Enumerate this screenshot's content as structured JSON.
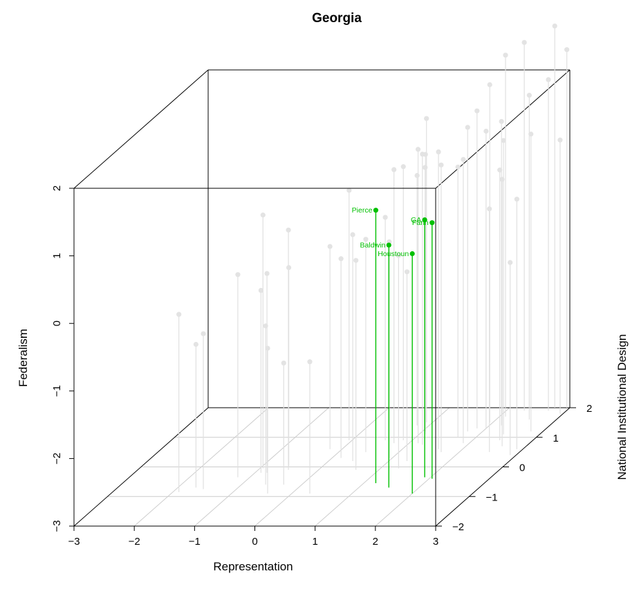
{
  "chart_data": {
    "type": "scatter3d",
    "title": "Georgia",
    "xlabel": "Representation",
    "ylabel": "Federalism",
    "zlabel": "National Institutional Design",
    "xlim": [
      -3,
      3
    ],
    "ylim": [
      -3,
      2
    ],
    "zlim": [
      -2,
      2
    ],
    "x_ticks": [
      "−3",
      "−2",
      "−1",
      "0",
      "1",
      "2",
      "3"
    ],
    "y_ticks": [
      "−3",
      "−2",
      "−1",
      "0",
      "1",
      "2"
    ],
    "z_ticks": [
      "−2",
      "−1",
      "0",
      "1",
      "2"
    ],
    "grid": true,
    "colors": {
      "highlight": "#00c000",
      "background_points": "#e3e3e3",
      "stem_background": "#e0e0e0",
      "grid": "#cccccc",
      "box": "#000000"
    },
    "highlighted_points": [
      {
        "label": "Pierce",
        "x": 1.2,
        "y": 1.04,
        "z": -0.55
      },
      {
        "label": "Baldwin",
        "x": 1.5,
        "y": 0.59,
        "z": -0.7
      },
      {
        "label": "GA",
        "x": 1.9,
        "y": 0.81,
        "z": -0.35
      },
      {
        "label": "Fann",
        "x": 2.05,
        "y": 0.79,
        "z": -0.4
      },
      {
        "label": "Houstoun",
        "x": 2.0,
        "y": 0.55,
        "z": -0.9
      }
    ],
    "other_points": [
      {
        "x": -1.9,
        "y": -0.37,
        "z": -0.85
      },
      {
        "x": -1.7,
        "y": -0.88,
        "z": -0.7
      },
      {
        "x": -1.55,
        "y": -0.7,
        "z": -0.75
      },
      {
        "x": -1.2,
        "y": 0.0,
        "z": -0.35
      },
      {
        "x": -0.95,
        "y": 0.75,
        "z": -0.05
      },
      {
        "x": -0.9,
        "y": -0.3,
        "z": -0.2
      },
      {
        "x": -0.8,
        "y": -0.05,
        "z": -0.2
      },
      {
        "x": -0.6,
        "y": -0.65,
        "z": -0.6
      },
      {
        "x": -0.55,
        "y": -0.05,
        "z": 0.0
      },
      {
        "x": -0.5,
        "y": 0.55,
        "z": -0.1
      },
      {
        "x": -0.4,
        "y": -0.85,
        "z": -0.9
      },
      {
        "x": -0.3,
        "y": -1.2,
        "z": -0.6
      },
      {
        "x": -0.2,
        "y": 0.0,
        "z": 0.6
      },
      {
        "x": -0.05,
        "y": 0.7,
        "z": 0.9
      },
      {
        "x": 0.15,
        "y": -0.05,
        "z": 0.3
      },
      {
        "x": 0.3,
        "y": -1.05,
        "z": -0.9
      },
      {
        "x": 0.4,
        "y": 0.35,
        "z": 0.2
      },
      {
        "x": 0.45,
        "y": 0.15,
        "z": 0.5
      },
      {
        "x": 0.55,
        "y": 0.3,
        "z": 0.9
      },
      {
        "x": 0.62,
        "y": 0.1,
        "z": -0.1
      },
      {
        "x": 0.75,
        "y": 1.05,
        "z": 0.8
      },
      {
        "x": 0.8,
        "y": 0.7,
        "z": 1.4
      },
      {
        "x": 0.85,
        "y": 1.05,
        "z": 0.9
      },
      {
        "x": 0.9,
        "y": 1.5,
        "z": 1.5
      },
      {
        "x": 0.95,
        "y": 0.2,
        "z": 0.3
      },
      {
        "x": 1.05,
        "y": 1.1,
        "z": 1.2
      },
      {
        "x": 1.1,
        "y": 0.95,
        "z": 1.1
      },
      {
        "x": 1.15,
        "y": 1.35,
        "z": 0.8
      },
      {
        "x": 1.25,
        "y": 1.3,
        "z": 0.75
      },
      {
        "x": 1.3,
        "y": -0.2,
        "z": 0.2
      },
      {
        "x": 1.3,
        "y": 0.15,
        "z": -0.05
      },
      {
        "x": 1.6,
        "y": 1.4,
        "z": 0.6
      },
      {
        "x": 1.7,
        "y": 1.25,
        "z": 0.5
      },
      {
        "x": 1.7,
        "y": 1.0,
        "z": 1.0
      },
      {
        "x": 1.75,
        "y": 1.5,
        "z": 1.2
      },
      {
        "x": 1.85,
        "y": 1.7,
        "z": 1.3
      },
      {
        "x": 1.9,
        "y": 1.2,
        "z": 0.8
      },
      {
        "x": 1.95,
        "y": 2.0,
        "z": 1.5
      },
      {
        "x": 2.0,
        "y": 1.4,
        "z": 1.3
      },
      {
        "x": 2.1,
        "y": 2.35,
        "z": 1.7
      },
      {
        "x": 2.2,
        "y": 1.5,
        "z": 1.4
      },
      {
        "x": 2.3,
        "y": 2.45,
        "z": 1.9
      },
      {
        "x": 2.4,
        "y": 1.35,
        "z": 1.1
      },
      {
        "x": 2.45,
        "y": 1.0,
        "z": 0.9
      },
      {
        "x": 2.5,
        "y": 0.6,
        "z": 0.5
      },
      {
        "x": 2.55,
        "y": 1.8,
        "z": 1.6
      },
      {
        "x": 2.6,
        "y": 0.95,
        "z": 0.7
      },
      {
        "x": 2.7,
        "y": 1.9,
        "z": 1.9
      },
      {
        "x": 2.75,
        "y": 2.65,
        "z": 2.0
      },
      {
        "x": 2.8,
        "y": 1.4,
        "z": 1.2
      },
      {
        "x": 2.9,
        "y": 0.7,
        "z": 0.6
      },
      {
        "x": 2.95,
        "y": 2.3,
        "z": 2.0
      },
      {
        "x": 2.95,
        "y": 1.05,
        "z": 1.8
      },
      {
        "x": 2.9,
        "y": -0.15,
        "z": 0.4
      }
    ]
  }
}
